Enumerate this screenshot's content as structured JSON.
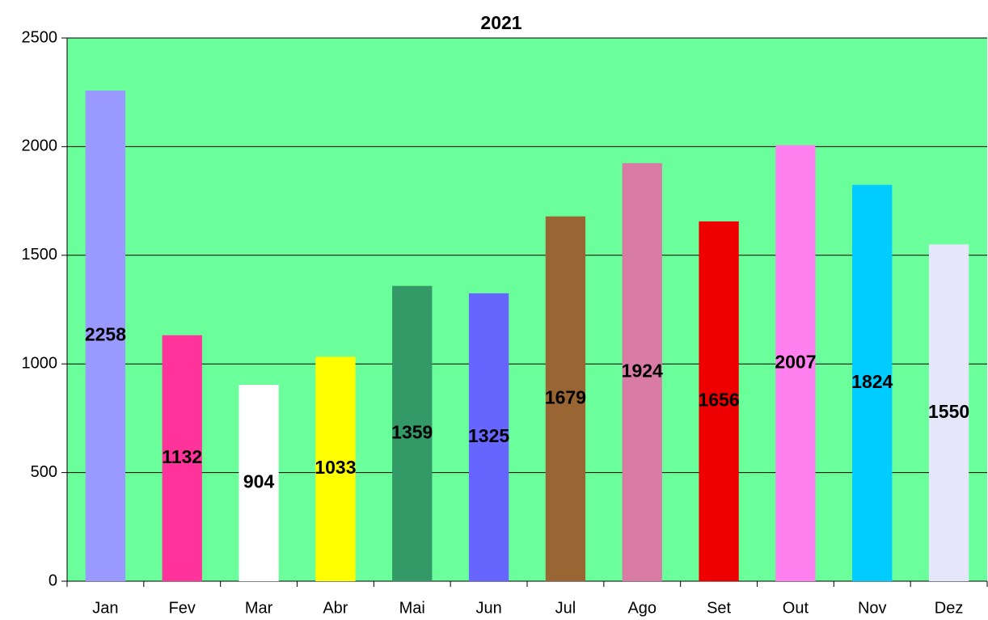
{
  "chart_data": {
    "type": "bar",
    "title": "2021",
    "categories": [
      "Jan",
      "Fev",
      "Mar",
      "Abr",
      "Mai",
      "Jun",
      "Jul",
      "Ago",
      "Set",
      "Out",
      "Nov",
      "Dez"
    ],
    "values": [
      2258,
      1132,
      904,
      1033,
      1359,
      1325,
      1679,
      1924,
      1656,
      2007,
      1824,
      1550
    ],
    "colors": [
      "#9999ff",
      "#ff3399",
      "#ffffff",
      "#ffff00",
      "#339966",
      "#6666ff",
      "#996633",
      "#d97ca5",
      "#ee0000",
      "#ff80ee",
      "#00ccff",
      "#e6e6fa"
    ],
    "ylim": [
      0,
      2500
    ],
    "yticks": [
      0,
      500,
      1000,
      1500,
      2000,
      2500
    ],
    "grid": true,
    "plot_background": "#6bff9b"
  }
}
